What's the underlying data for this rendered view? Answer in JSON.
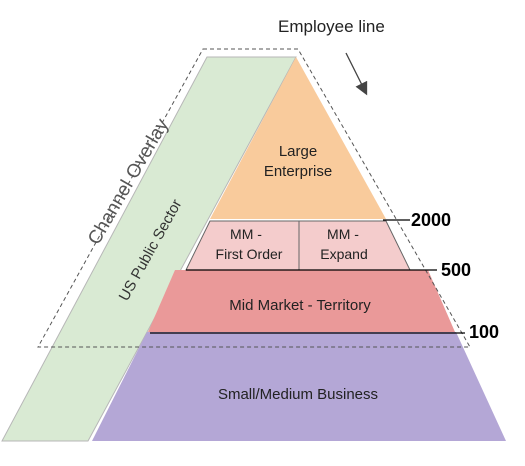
{
  "header": {
    "employee_line_label": "Employee line"
  },
  "overlay": {
    "channel_label": "Channel Overlay",
    "sector_label": "US Public Sector"
  },
  "tiers": {
    "large": {
      "line1": "Large",
      "line2": "Enterprise"
    },
    "mm_first": {
      "line1": "MM -",
      "line2": "First Order"
    },
    "mm_expand": {
      "line1": "MM -",
      "line2": "Expand"
    },
    "mid_market": {
      "label": "Mid Market - Territory"
    },
    "smb": {
      "label": "Small/Medium Business"
    }
  },
  "thresholds": {
    "t2000": "2000",
    "t500": "500",
    "t100": "100"
  },
  "colors": {
    "large": "#f9cb9c",
    "mm": "#f4cccc",
    "mid_market": "#ea9999",
    "smb": "#b4a7d6",
    "overlay_band": "#d9ead3"
  }
}
